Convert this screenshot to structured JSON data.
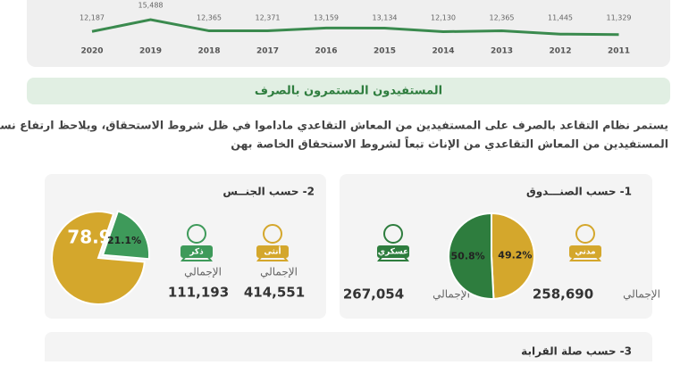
{
  "top_chart": {
    "type": "line",
    "categories": [
      "2020",
      "2019",
      "2018",
      "2017",
      "2016",
      "2015",
      "2014",
      "2013",
      "2012",
      "2011"
    ],
    "values": [
      12187,
      15488,
      12365,
      12371,
      13159,
      13134,
      12130,
      12365,
      11445,
      11329
    ],
    "value_labels": [
      "12,187",
      "15,488",
      "12,365",
      "12,371",
      "13,159",
      "13,134",
      "12,130",
      "12,365",
      "11,445",
      "11,329"
    ],
    "color": "#3a8a4e"
  },
  "section": {
    "title": "المستفيدون المستمرون  بالصرف",
    "paragraph": [
      "يستمر نظام التقاعد بالصرف على المستفيدين من المعاش التقاعدي ماداموا في ظل شروط الاستحقاق، ويلاحظ ارتفاع نسبة",
      "المستفيدين من المعاش التقاعدي من الإناث تبعاً لشروط الاستحقاق الخاصة بهن"
    ]
  },
  "cards": [
    {
      "title": "1- حسب الصنـــدوق",
      "groups": [
        {
          "label": "مدني",
          "total_label": "الإجمالي",
          "total": "258,690"
        },
        {
          "label": "عسكري",
          "total_label": "الإجمالي",
          "total": "267,054"
        }
      ],
      "pie": {
        "type": "pie",
        "values": [
          49.2,
          50.8
        ],
        "value_labels": [
          "49.2%",
          "50.8%"
        ],
        "colors": [
          "#d4a72c",
          "#2e7d3e"
        ]
      }
    },
    {
      "title": "2- حسب الجنــس",
      "groups": [
        {
          "label": "أنثى",
          "total_label": "الإجمالي",
          "total": "414,551"
        },
        {
          "label": "ذكر",
          "total_label": "الإجمالي",
          "total": "111,193"
        }
      ],
      "pie": {
        "type": "pie",
        "values": [
          78.9,
          21.1
        ],
        "value_labels": [
          "78.9%",
          "21.1%"
        ],
        "colors": [
          "#d4a72c",
          "#3e9a5a"
        ]
      }
    },
    {
      "title": "3- حسب صلة القرابة"
    }
  ]
}
